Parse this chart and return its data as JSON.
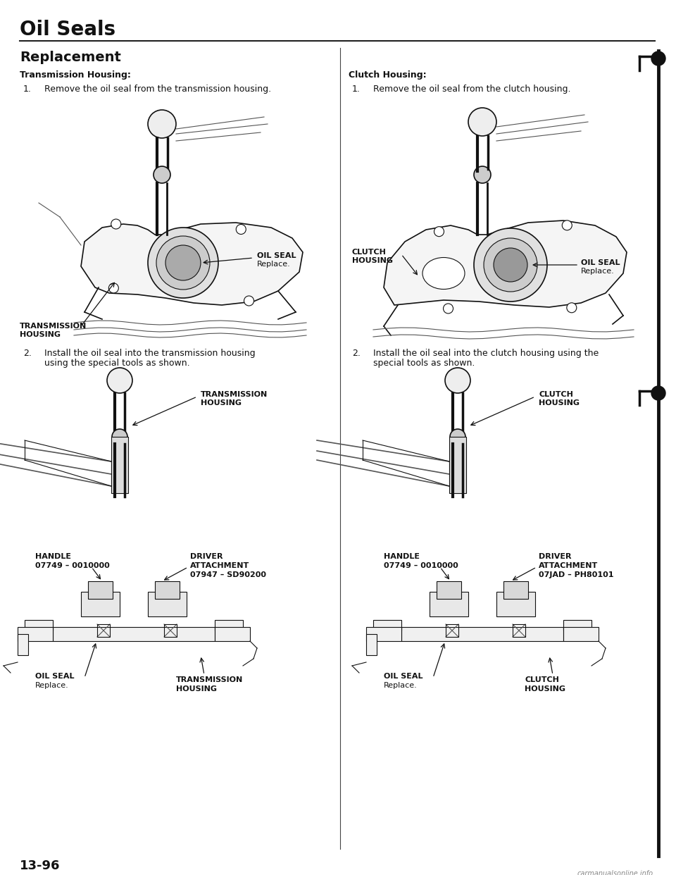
{
  "page_title": "Oil Seals",
  "section_title": "Replacement",
  "bg_color": "#ffffff",
  "page_number": "13-96",
  "watermark": "carmanualsonline.info",
  "left_col": {
    "section_header": "Transmission Housing:",
    "step1_num": "1.",
    "step1_text": "Remove the oil seal from the transmission housing.",
    "step2_num": "2.",
    "step2_line1": "Install the oil seal into the transmission housing",
    "step2_line2": "using the special tools as shown.",
    "img1_label1": "OIL SEAL",
    "img1_label1b": "Replace.",
    "img1_label2a": "TRANSMISSION",
    "img1_label2b": "HOUSING",
    "img2_label1a": "TRANSMISSION",
    "img2_label1b": "HOUSING",
    "img3_label_handle_a": "HANDLE",
    "img3_label_handle_b": "07749 – 0010000",
    "img3_label_driver_a": "DRIVER",
    "img3_label_driver_b": "ATTACHMENT",
    "img3_label_driver_c": "07947 – SD90200",
    "img3_label_oilseal_a": "OIL SEAL",
    "img3_label_oilseal_b": "Replace.",
    "img3_label_housing_a": "TRANSMISSION",
    "img3_label_housing_b": "HOUSING"
  },
  "right_col": {
    "section_header": "Clutch Housing:",
    "step1_num": "1.",
    "step1_text": "Remove the oil seal from the clutch housing.",
    "step2_num": "2.",
    "step2_line1": "Install the oil seal into the clutch housing using the",
    "step2_line2": "special tools as shown.",
    "img1_label1": "CLUTCH",
    "img1_label1b": "HOUSING",
    "img1_label2a": "OIL SEAL",
    "img1_label2b": "Replace.",
    "img2_label1a": "CLUTCH",
    "img2_label1b": "HOUSING",
    "img3_label_handle_a": "HANDLE",
    "img3_label_handle_b": "07749 – 0010000",
    "img3_label_driver_a": "DRIVER",
    "img3_label_driver_b": "ATTACHMENT",
    "img3_label_driver_c": "07JAD – PH80101",
    "img3_label_oilseal_a": "OIL SEAL",
    "img3_label_oilseal_b": "Replace.",
    "img3_label_housing_a": "CLUTCH",
    "img3_label_housing_b": "HOUSING"
  }
}
